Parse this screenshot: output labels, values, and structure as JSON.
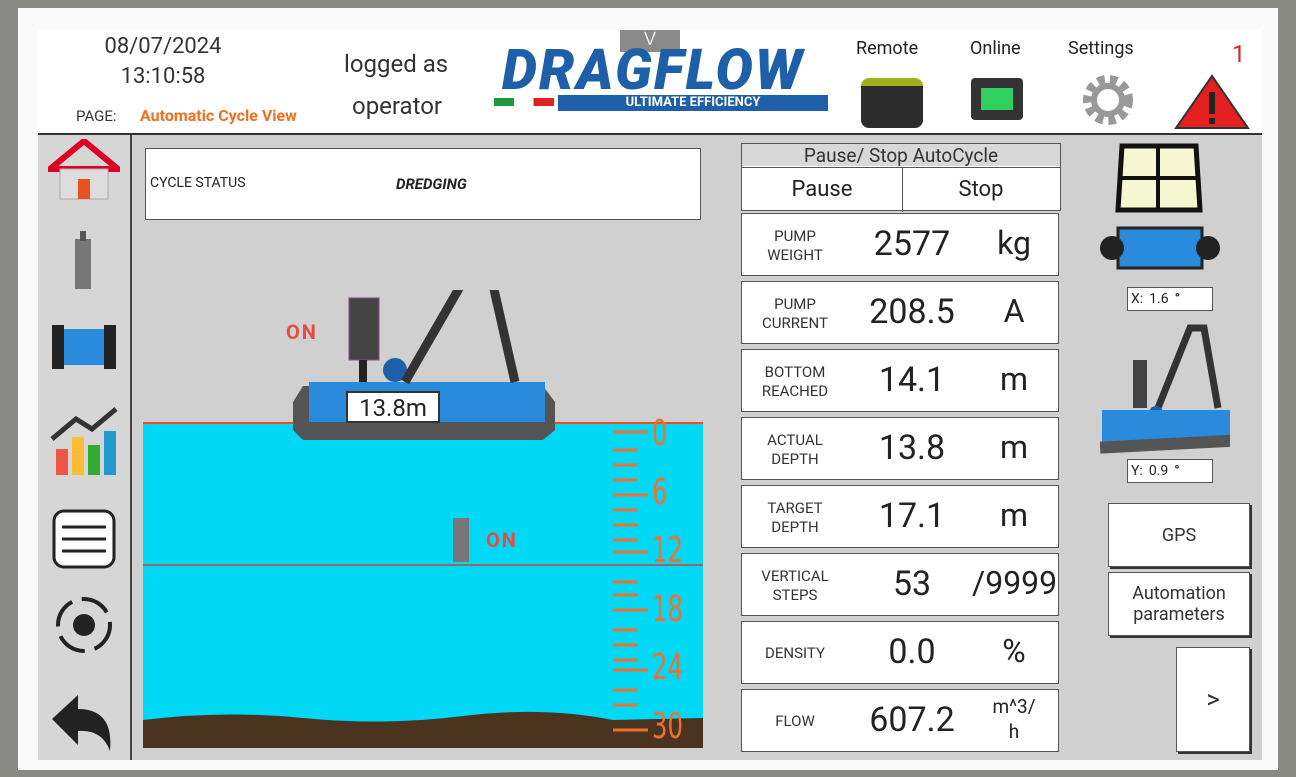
{
  "header": {
    "date": "08/07/2024",
    "time": "13:10:58",
    "page_label": "PAGE:",
    "page_name": "Automatic Cycle View",
    "login_line1": "logged as",
    "login_line2": "operator",
    "logo_title": "DRAGFLOW",
    "logo_subtitle": "ULTIMATE EFFICIENCY",
    "remote": "Remote",
    "online": "Online",
    "settings": "Settings",
    "alarm_count": "1"
  },
  "cycle_status": {
    "label": "CYCLE STATUS",
    "value": "DREDGING"
  },
  "scene": {
    "pontoon_state": "ON",
    "pump_state": "ON",
    "depth_label": "13.8m",
    "scale": [
      "0",
      "6",
      "12",
      "18",
      "24",
      "30"
    ]
  },
  "control": {
    "title": "Pause/ Stop AutoCycle",
    "buttons": [
      "Pause",
      "Stop"
    ]
  },
  "readings": [
    {
      "label": "PUMP\nWEIGHT",
      "value": "2577",
      "unit": "kg"
    },
    {
      "label": "PUMP\nCURRENT",
      "value": "208.5",
      "unit": "A"
    },
    {
      "label": "BOTTOM\nREACHED",
      "value": "14.1",
      "unit": "m"
    },
    {
      "label": "ACTUAL\nDEPTH",
      "value": "13.8",
      "unit": "m"
    },
    {
      "label": "TARGET\nDEPTH",
      "value": "17.1",
      "unit": "m"
    },
    {
      "label": "VERTICAL\nSTEPS",
      "value": "53",
      "unit": "/9999"
    },
    {
      "label": "DENSITY",
      "value": "0.0",
      "unit": "%"
    },
    {
      "label": "FLOW",
      "value": "607.2",
      "unit": "m^3/\nh"
    }
  ],
  "position": {
    "x_label": "X:",
    "x_value": "1.6",
    "x_unit": "°",
    "y_label": "Y:",
    "y_value": "0.9",
    "y_unit": "°"
  },
  "side_buttons": [
    "GPS",
    "Automation parameters"
  ],
  "next": ">"
}
